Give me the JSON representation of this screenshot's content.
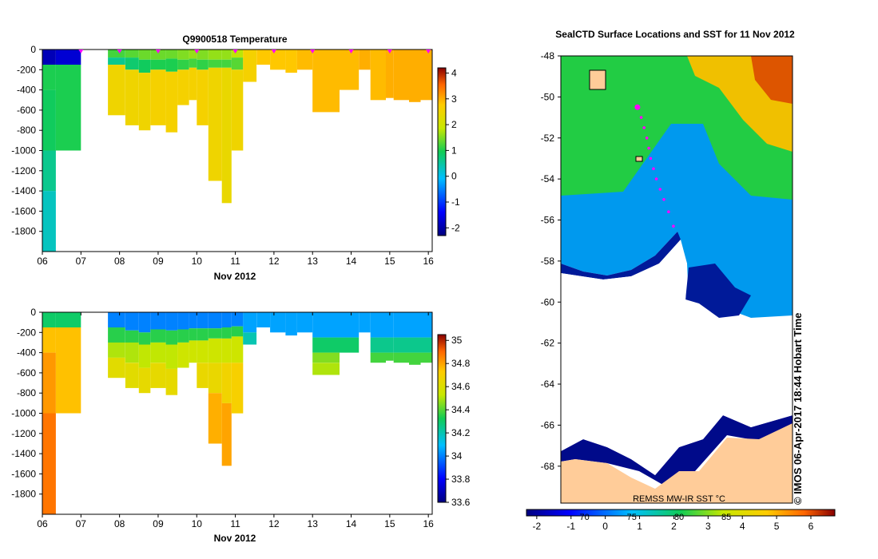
{
  "chart_data": [
    {
      "type": "heatmap",
      "title": "Q9900518  Temperature",
      "xlabel": "Nov 2012",
      "x_ticks": [
        "06",
        "07",
        "08",
        "09",
        "10",
        "11",
        "12",
        "13",
        "14",
        "15",
        "16"
      ],
      "xlim": [
        6,
        16.1
      ],
      "y_ticks": [
        "0",
        "-200",
        "-400",
        "-600",
        "-800",
        "-1000",
        "-1200",
        "-1400",
        "-1600",
        "-1800"
      ],
      "ylim": [
        -2000,
        0
      ],
      "colorbar_ticks": [
        "-2",
        "-1",
        "0",
        "1",
        "2",
        "3",
        "4"
      ],
      "colorbar_range": [
        -2.3,
        4.2
      ],
      "profiles": [
        {
          "day": 6.0,
          "depth": 2000,
          "layers": [
            [
              0,
              150,
              -1.9
            ],
            [
              150,
              400,
              1.0
            ],
            [
              400,
              1000,
              0.9
            ],
            [
              1000,
              1400,
              0.6
            ],
            [
              1400,
              2000,
              0.3
            ]
          ]
        },
        {
          "day": 6.35,
          "depth": 1000,
          "layers": [
            [
              0,
              150,
              -1.7
            ],
            [
              150,
              1000,
              1.0
            ]
          ]
        },
        {
          "day": 7.7,
          "depth": 650,
          "layers": [
            [
              0,
              80,
              1.2
            ],
            [
              80,
              150,
              0.6
            ],
            [
              150,
              650,
              2.5
            ]
          ]
        },
        {
          "day": 8.15,
          "depth": 750,
          "layers": [
            [
              0,
              80,
              1.3
            ],
            [
              80,
              200,
              0.8
            ],
            [
              200,
              750,
              2.5
            ]
          ]
        },
        {
          "day": 8.5,
          "depth": 800,
          "layers": [
            [
              0,
              100,
              1.4
            ],
            [
              100,
              230,
              0.9
            ],
            [
              230,
              800,
              2.5
            ]
          ]
        },
        {
          "day": 8.8,
          "depth": 750,
          "layers": [
            [
              0,
              100,
              1.4
            ],
            [
              100,
              200,
              1.0
            ],
            [
              200,
              750,
              2.6
            ]
          ]
        },
        {
          "day": 9.2,
          "depth": 820,
          "layers": [
            [
              0,
              90,
              1.4
            ],
            [
              90,
              220,
              1.0
            ],
            [
              220,
              820,
              2.6
            ]
          ]
        },
        {
          "day": 9.5,
          "depth": 550,
          "layers": [
            [
              0,
              100,
              1.5
            ],
            [
              100,
              200,
              1.1
            ],
            [
              200,
              550,
              2.6
            ]
          ]
        },
        {
          "day": 9.8,
          "depth": 500,
          "layers": [
            [
              0,
              90,
              1.6
            ],
            [
              90,
              180,
              1.2
            ],
            [
              180,
              500,
              2.6
            ]
          ]
        },
        {
          "day": 10.0,
          "depth": 750,
          "layers": [
            [
              0,
              100,
              1.5
            ],
            [
              100,
              200,
              1.1
            ],
            [
              200,
              750,
              2.6
            ]
          ]
        },
        {
          "day": 10.3,
          "depth": 1300,
          "layers": [
            [
              0,
              100,
              1.6
            ],
            [
              100,
              180,
              1.2
            ],
            [
              180,
              1300,
              2.5
            ]
          ]
        },
        {
          "day": 10.65,
          "depth": 1520,
          "layers": [
            [
              0,
              100,
              1.6
            ],
            [
              100,
              180,
              1.2
            ],
            [
              180,
              1520,
              2.4
            ]
          ]
        },
        {
          "day": 10.9,
          "depth": 1000,
          "layers": [
            [
              0,
              80,
              1.8
            ],
            [
              80,
              200,
              1.3
            ],
            [
              200,
              1000,
              2.5
            ]
          ]
        },
        {
          "day": 11.2,
          "depth": 320,
          "layers": [
            [
              0,
              320,
              2.6
            ]
          ]
        },
        {
          "day": 11.55,
          "depth": 150,
          "layers": [
            [
              0,
              150,
              2.8
            ]
          ]
        },
        {
          "day": 11.9,
          "depth": 200,
          "layers": [
            [
              0,
              200,
              2.8
            ]
          ]
        },
        {
          "day": 12.3,
          "depth": 230,
          "layers": [
            [
              0,
              230,
              2.8
            ]
          ]
        },
        {
          "day": 12.6,
          "depth": 200,
          "layers": [
            [
              0,
              200,
              2.9
            ]
          ]
        },
        {
          "day": 13.0,
          "depth": 620,
          "layers": [
            [
              0,
              620,
              2.9
            ]
          ]
        },
        {
          "day": 13.7,
          "depth": 400,
          "layers": [
            [
              0,
              400,
              2.9
            ]
          ]
        },
        {
          "day": 14.2,
          "depth": 200,
          "layers": [
            [
              0,
              200,
              3.0
            ]
          ]
        },
        {
          "day": 14.5,
          "depth": 500,
          "layers": [
            [
              0,
              500,
              2.9
            ]
          ]
        },
        {
          "day": 14.9,
          "depth": 480,
          "layers": [
            [
              0,
              480,
              3.0
            ]
          ]
        },
        {
          "day": 15.1,
          "depth": 500,
          "layers": [
            [
              0,
              500,
              3.0
            ]
          ]
        },
        {
          "day": 15.5,
          "depth": 520,
          "layers": [
            [
              0,
              520,
              3.0
            ]
          ]
        },
        {
          "day": 15.8,
          "depth": 500,
          "layers": [
            [
              0,
              500,
              3.0
            ]
          ]
        }
      ]
    },
    {
      "type": "heatmap",
      "title": "",
      "xlabel": "Nov 2012",
      "x_ticks": [
        "06",
        "07",
        "08",
        "09",
        "10",
        "11",
        "12",
        "13",
        "14",
        "15",
        "16"
      ],
      "xlim": [
        6,
        16.1
      ],
      "y_ticks": [
        "0",
        "-200",
        "-400",
        "-600",
        "-800",
        "-1000",
        "-1200",
        "-1400",
        "-1600",
        "-1800"
      ],
      "ylim": [
        -2000,
        0
      ],
      "colorbar_ticks": [
        "33.6",
        "33.8",
        "34",
        "34.2",
        "34.4",
        "34.6",
        "34.8",
        "35"
      ],
      "colorbar_range": [
        33.6,
        35.05
      ],
      "profiles": [
        {
          "day": 6.0,
          "depth": 2000,
          "layers": [
            [
              0,
              150,
              34.3
            ],
            [
              150,
              400,
              34.75
            ],
            [
              400,
              1000,
              34.82
            ],
            [
              1000,
              2000,
              34.88
            ]
          ]
        },
        {
          "day": 6.35,
          "depth": 1000,
          "layers": [
            [
              0,
              150,
              34.3
            ],
            [
              150,
              1000,
              34.75
            ]
          ]
        },
        {
          "day": 7.7,
          "depth": 650,
          "layers": [
            [
              0,
              150,
              34.0
            ],
            [
              150,
              300,
              34.35
            ],
            [
              300,
              450,
              34.5
            ],
            [
              450,
              650,
              34.62
            ]
          ]
        },
        {
          "day": 8.15,
          "depth": 750,
          "layers": [
            [
              0,
              180,
              34.0
            ],
            [
              180,
              300,
              34.35
            ],
            [
              300,
              500,
              34.5
            ],
            [
              500,
              750,
              34.62
            ]
          ]
        },
        {
          "day": 8.5,
          "depth": 800,
          "layers": [
            [
              0,
              200,
              34.0
            ],
            [
              200,
              320,
              34.35
            ],
            [
              320,
              550,
              34.52
            ],
            [
              550,
              800,
              34.64
            ]
          ]
        },
        {
          "day": 8.8,
          "depth": 750,
          "layers": [
            [
              0,
              170,
              34.0
            ],
            [
              170,
              300,
              34.35
            ],
            [
              300,
              500,
              34.52
            ],
            [
              500,
              750,
              34.64
            ]
          ]
        },
        {
          "day": 9.2,
          "depth": 820,
          "layers": [
            [
              0,
              180,
              34.0
            ],
            [
              180,
              320,
              34.35
            ],
            [
              320,
              560,
              34.52
            ],
            [
              560,
              820,
              34.64
            ]
          ]
        },
        {
          "day": 9.5,
          "depth": 550,
          "layers": [
            [
              0,
              170,
              34.0
            ],
            [
              170,
              300,
              34.35
            ],
            [
              300,
              550,
              34.55
            ]
          ]
        },
        {
          "day": 9.8,
          "depth": 500,
          "layers": [
            [
              0,
              160,
              34.0
            ],
            [
              160,
              280,
              34.35
            ],
            [
              280,
              500,
              34.55
            ]
          ]
        },
        {
          "day": 10.0,
          "depth": 750,
          "layers": [
            [
              0,
              160,
              34.0
            ],
            [
              160,
              280,
              34.35
            ],
            [
              280,
              500,
              34.55
            ],
            [
              500,
              750,
              34.65
            ]
          ]
        },
        {
          "day": 10.3,
          "depth": 1300,
          "layers": [
            [
              0,
              160,
              34.0
            ],
            [
              160,
              260,
              34.35
            ],
            [
              260,
              500,
              34.55
            ],
            [
              500,
              800,
              34.65
            ],
            [
              800,
              1300,
              34.78
            ]
          ]
        },
        {
          "day": 10.65,
          "depth": 1520,
          "layers": [
            [
              0,
              150,
              34.0
            ],
            [
              150,
              260,
              34.35
            ],
            [
              260,
              500,
              34.55
            ],
            [
              500,
              900,
              34.68
            ],
            [
              900,
              1520,
              34.8
            ]
          ]
        },
        {
          "day": 10.9,
          "depth": 1000,
          "layers": [
            [
              0,
              140,
              34.0
            ],
            [
              140,
              240,
              34.35
            ],
            [
              240,
              500,
              34.55
            ],
            [
              500,
              1000,
              34.7
            ]
          ]
        },
        {
          "day": 11.2,
          "depth": 320,
          "layers": [
            [
              0,
              200,
              34.05
            ],
            [
              200,
              320,
              34.2
            ]
          ]
        },
        {
          "day": 11.55,
          "depth": 150,
          "layers": [
            [
              0,
              150,
              34.05
            ]
          ]
        },
        {
          "day": 11.9,
          "depth": 200,
          "layers": [
            [
              0,
              200,
              34.05
            ]
          ]
        },
        {
          "day": 12.3,
          "depth": 230,
          "layers": [
            [
              0,
              230,
              34.05
            ]
          ]
        },
        {
          "day": 12.6,
          "depth": 200,
          "layers": [
            [
              0,
              200,
              34.05
            ]
          ]
        },
        {
          "day": 13.0,
          "depth": 620,
          "layers": [
            [
              0,
              250,
              34.05
            ],
            [
              250,
              400,
              34.3
            ],
            [
              400,
              500,
              34.45
            ],
            [
              500,
              620,
              34.5
            ]
          ]
        },
        {
          "day": 13.7,
          "depth": 400,
          "layers": [
            [
              0,
              250,
              34.05
            ],
            [
              250,
              400,
              34.3
            ]
          ]
        },
        {
          "day": 14.2,
          "depth": 200,
          "layers": [
            [
              0,
              200,
              34.05
            ]
          ]
        },
        {
          "day": 14.5,
          "depth": 500,
          "layers": [
            [
              0,
              250,
              34.05
            ],
            [
              250,
              400,
              34.25
            ],
            [
              400,
              500,
              34.38
            ]
          ]
        },
        {
          "day": 14.9,
          "depth": 480,
          "layers": [
            [
              0,
              250,
              34.05
            ],
            [
              250,
              400,
              34.25
            ],
            [
              400,
              480,
              34.38
            ]
          ]
        },
        {
          "day": 15.1,
          "depth": 500,
          "layers": [
            [
              0,
              250,
              34.05
            ],
            [
              250,
              400,
              34.25
            ],
            [
              400,
              500,
              34.38
            ]
          ]
        },
        {
          "day": 15.5,
          "depth": 520,
          "layers": [
            [
              0,
              250,
              34.05
            ],
            [
              250,
              400,
              34.25
            ],
            [
              400,
              520,
              34.38
            ]
          ]
        },
        {
          "day": 15.8,
          "depth": 500,
          "layers": [
            [
              0,
              250,
              34.05
            ],
            [
              250,
              400,
              34.25
            ],
            [
              400,
              500,
              34.38
            ]
          ]
        }
      ]
    },
    {
      "type": "heatmap",
      "title": "SealCTD Surface Locations and SST for 11 Nov 2012",
      "ylabel": "",
      "y_ticks": [
        "-48",
        "-50",
        "-52",
        "-54",
        "-56",
        "-58",
        "-60",
        "-62",
        "-64",
        "-66",
        "-68"
      ],
      "ylim": [
        -69.8,
        -48
      ],
      "colorbar_ticks": [
        "-2",
        "-1",
        "0",
        "1",
        "2",
        "3",
        "4",
        "5",
        "6"
      ],
      "colorbar_range": [
        -2.3,
        6.7
      ],
      "longitude_labels": [
        "70",
        "75",
        "80",
        "85"
      ],
      "colorbar_label": "REMSS MW-IR SST °C",
      "credit": "© IMOS 06-Apr-2017 18:44 Hobart Time",
      "seal_track": [
        [
          -50.5,
          75.6
        ],
        [
          -51.0,
          76.0
        ],
        [
          -51.5,
          76.3
        ],
        [
          -52.0,
          76.6
        ],
        [
          -52.5,
          76.8
        ],
        [
          -53.0,
          77.0
        ],
        [
          -53.5,
          77.3
        ],
        [
          -54.0,
          77.6
        ],
        [
          -54.5,
          78.0
        ],
        [
          -55.0,
          78.4
        ],
        [
          -55.6,
          78.9
        ],
        [
          -56.3,
          79.4
        ]
      ]
    }
  ]
}
